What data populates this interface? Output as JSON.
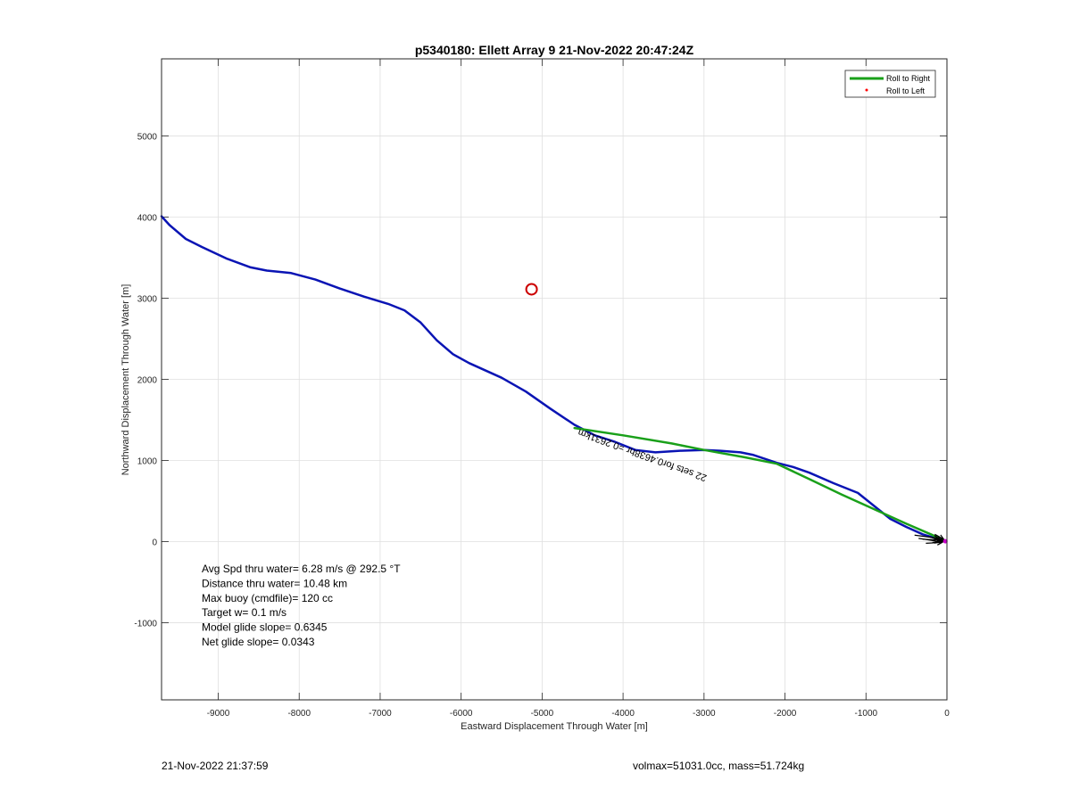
{
  "footer": {
    "timestamp": "21-Nov-2022 21:37:59",
    "volmax_mass": "volmax=51031.0cc, mass=51.724kg"
  },
  "chart_data": {
    "type": "line",
    "title": "p5340180: Ellett Array 9 21-Nov-2022 20:47:24Z",
    "xlabel": "Eastward Displacement Through Water [m]",
    "ylabel": "Northward Displacement Through Water [m]",
    "xlim": [
      -9700,
      0
    ],
    "ylim": [
      -1950,
      5950
    ],
    "xticks": [
      -9000,
      -8000,
      -7000,
      -6000,
      -5000,
      -4000,
      -3000,
      -2000,
      -1000,
      0
    ],
    "yticks": [
      -1000,
      0,
      1000,
      2000,
      3000,
      4000,
      5000
    ],
    "xtick_labels": [
      "-9000",
      "-8000",
      "-7000",
      "-6000",
      "-5000",
      "-4000",
      "-3000",
      "-2000",
      "-1000",
      "0"
    ],
    "ytick_labels": [
      "-1000",
      "0",
      "1000",
      "2000",
      "3000",
      "4000",
      "5000"
    ],
    "grid": true,
    "legend": {
      "position": "top-right",
      "entries": [
        {
          "label": "Roll to Right",
          "color": "#1aa01a",
          "style": "line"
        },
        {
          "label": "Roll to Left",
          "color": "#ff0000",
          "style": "dot"
        }
      ]
    },
    "series": [
      {
        "color": "#0a14b4",
        "points": [
          [
            -9700,
            4010
          ],
          [
            -9600,
            3900
          ],
          [
            -9400,
            3730
          ],
          [
            -9200,
            3630
          ],
          [
            -8900,
            3490
          ],
          [
            -8600,
            3380
          ],
          [
            -8400,
            3340
          ],
          [
            -8100,
            3310
          ],
          [
            -7800,
            3230
          ],
          [
            -7500,
            3120
          ],
          [
            -7200,
            3020
          ],
          [
            -6900,
            2930
          ],
          [
            -6700,
            2850
          ],
          [
            -6500,
            2700
          ],
          [
            -6300,
            2480
          ],
          [
            -6100,
            2310
          ],
          [
            -5900,
            2200
          ],
          [
            -5500,
            2020
          ],
          [
            -5200,
            1850
          ],
          [
            -4900,
            1640
          ],
          [
            -4600,
            1440
          ],
          [
            -4350,
            1310
          ],
          [
            -4100,
            1230
          ],
          [
            -3850,
            1130
          ],
          [
            -3600,
            1100
          ],
          [
            -3300,
            1120
          ],
          [
            -3000,
            1130
          ],
          [
            -2800,
            1120
          ],
          [
            -2550,
            1100
          ],
          [
            -2400,
            1070
          ],
          [
            -2100,
            970
          ],
          [
            -1900,
            920
          ],
          [
            -1700,
            850
          ],
          [
            -1400,
            720
          ],
          [
            -1100,
            600
          ],
          [
            -900,
            440
          ],
          [
            -700,
            280
          ],
          [
            -500,
            180
          ],
          [
            -300,
            90
          ],
          [
            -100,
            30
          ],
          [
            -20,
            0
          ]
        ]
      },
      {
        "color": "#1aa01a",
        "points": [
          [
            -4600,
            1400
          ],
          [
            -4000,
            1310
          ],
          [
            -3400,
            1210
          ],
          [
            -3000,
            1130
          ],
          [
            -2500,
            1040
          ],
          [
            -2100,
            960
          ],
          [
            -1700,
            770
          ],
          [
            -1300,
            580
          ],
          [
            -900,
            400
          ],
          [
            -500,
            220
          ],
          [
            -200,
            90
          ],
          [
            -20,
            10
          ]
        ]
      }
    ],
    "markers": [
      {
        "type": "circle",
        "color": "#cc0000",
        "x": -5130,
        "y": 3110
      },
      {
        "type": "dot",
        "color": "#c800c8",
        "x": -20,
        "y": 5
      }
    ],
    "current_arrows": [
      {
        "x": -400,
        "y": 80,
        "dx": 300,
        "dy": -40
      },
      {
        "x": -350,
        "y": 40,
        "dx": 260,
        "dy": -40
      },
      {
        "x": -300,
        "y": 30,
        "dx": 220,
        "dy": -10
      },
      {
        "x": -260,
        "y": -20,
        "dx": 200,
        "dy": 10
      },
      {
        "x": -220,
        "y": 60,
        "dx": 160,
        "dy": -50
      },
      {
        "x": -180,
        "y": -10,
        "dx": 140,
        "dy": 15
      },
      {
        "x": -150,
        "y": 90,
        "dx": 110,
        "dy": -60
      },
      {
        "x": -120,
        "y": 20,
        "dx": 100,
        "dy": -10
      }
    ],
    "annotations": {
      "rotated_label": "22 sets for0.4638hr =0.2631km",
      "stats": [
        "Avg Spd thru water=  6.28 m/s @ 292.5 °T",
        "Distance thru water= 10.48 km",
        "Max buoy (cmdfile)= 120 cc",
        "Target w= 0.1 m/s",
        "Model glide slope= 0.6345",
        "Net glide slope= 0.0343"
      ]
    }
  }
}
